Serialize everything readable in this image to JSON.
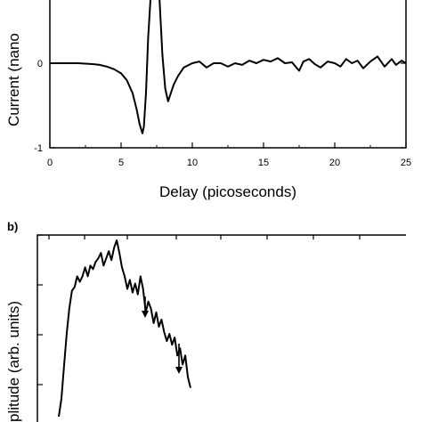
{
  "chart_data": [
    {
      "type": "line",
      "panel_label": "",
      "xlabel": "Delay (picoseconds)",
      "ylabel": "Current (nano",
      "xlim": [
        0,
        25
      ],
      "ylim": [
        -1,
        1
      ],
      "x_ticks": [
        0,
        5,
        10,
        15,
        20,
        25
      ],
      "x_tick_labels": [
        "0",
        "5",
        "10",
        "15",
        "20",
        "25"
      ],
      "y_ticks": [
        -1,
        0
      ],
      "y_tick_labels": [
        "-1",
        "0"
      ],
      "series": [
        {
          "x": [
            0,
            1,
            2,
            3,
            3.5,
            4,
            4.5,
            5,
            5.4,
            5.8,
            6.1,
            6.3,
            6.5,
            6.6,
            6.75,
            6.9,
            7.1,
            7.3,
            7.5,
            7.7,
            7.9,
            8.1,
            8.3,
            8.5,
            8.7,
            9,
            9.4,
            10,
            10.5,
            11,
            11.5,
            12,
            12.5,
            13,
            13.5,
            14,
            14.5,
            15,
            15.5,
            16,
            16.5,
            17,
            17.5,
            17.8,
            18.2,
            18.6,
            19,
            19.5,
            20,
            20.4,
            20.8,
            21.2,
            21.6,
            22,
            22.5,
            23,
            23.5,
            24,
            24.3,
            24.7,
            25
          ],
          "y": [
            0.0,
            0.0,
            0.0,
            -0.01,
            -0.02,
            -0.04,
            -0.07,
            -0.12,
            -0.2,
            -0.35,
            -0.55,
            -0.72,
            -0.83,
            -0.75,
            -0.35,
            0.3,
            0.85,
            1.4,
            1.3,
            0.75,
            0.1,
            -0.3,
            -0.45,
            -0.35,
            -0.25,
            -0.15,
            -0.05,
            0.0,
            0.02,
            -0.05,
            0.0,
            0.0,
            -0.04,
            0.0,
            -0.02,
            0.03,
            0.0,
            0.04,
            0.02,
            0.06,
            0.0,
            0.01,
            -0.09,
            0.02,
            0.05,
            -0.01,
            -0.05,
            0.02,
            0.0,
            -0.04,
            0.05,
            0.0,
            0.03,
            -0.06,
            0.02,
            0.08,
            -0.04,
            0.05,
            -0.02,
            0.03,
            0.0
          ]
        }
      ]
    },
    {
      "type": "line",
      "panel_label": "b)",
      "xlabel": "",
      "ylabel": "plitude (arb. units)",
      "annotations": [
        "arrow",
        "arrow"
      ],
      "series": [
        {
          "x": [
            0,
            1,
            2,
            3,
            4,
            5,
            6,
            7,
            8,
            9,
            10,
            11,
            12,
            13,
            14,
            15,
            16,
            17,
            18,
            19,
            20,
            21,
            22,
            23,
            24,
            25,
            26,
            27,
            28,
            29,
            30,
            31,
            32,
            33,
            34,
            35,
            36,
            37,
            38,
            39,
            40,
            41,
            42,
            43,
            44,
            45,
            46,
            47,
            48,
            49,
            50
          ],
          "y": [
            0.02,
            0.12,
            0.3,
            0.48,
            0.62,
            0.72,
            0.74,
            0.8,
            0.77,
            0.8,
            0.85,
            0.8,
            0.86,
            0.84,
            0.88,
            0.9,
            0.93,
            0.86,
            0.9,
            0.94,
            0.89,
            0.96,
            1.0,
            0.93,
            0.85,
            0.8,
            0.73,
            0.78,
            0.71,
            0.76,
            0.7,
            0.8,
            0.73,
            0.6,
            0.66,
            0.62,
            0.54,
            0.6,
            0.52,
            0.56,
            0.49,
            0.44,
            0.48,
            0.42,
            0.46,
            0.36,
            0.4,
            0.31,
            0.36,
            0.24,
            0.18
          ]
        }
      ]
    }
  ]
}
